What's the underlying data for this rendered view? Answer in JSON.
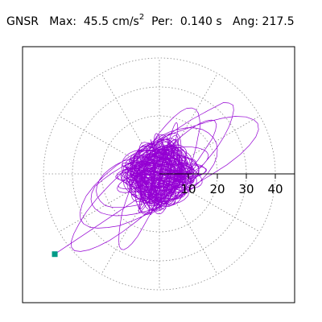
{
  "header": {
    "station": "GNSR",
    "max_label": "Max:",
    "max_value": "45.5 cm/s",
    "max_exp": "2",
    "per_label": "Per:",
    "per_value": "0.140 s",
    "ang_label": "Ang:",
    "ang_value": "217.5"
  },
  "chart_data": {
    "type": "scatter",
    "title": "",
    "xlabel": "",
    "ylabel": "",
    "polar_rings": [
      10,
      20,
      30,
      40
    ],
    "radial_tick_labels": [
      "10",
      "20",
      "30",
      "40"
    ],
    "radial_axis_max": 50,
    "grid": "dotted polar, spokes every 30 degrees",
    "trace_color": "#9400d3",
    "marker_color": "#009a88",
    "max_point": {
      "magnitude": 45.5,
      "angle_deg": 217.5
    },
    "trace_description_values": {
      "dominant_axis_deg": 37.5,
      "core_radius": 9,
      "envelope_major": 45.5,
      "envelope_minor": 16
    }
  }
}
